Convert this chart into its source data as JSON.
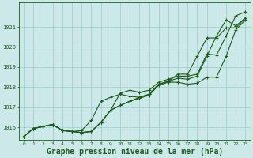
{
  "background_color": "#cce8e8",
  "grid_color": "#99cccc",
  "line_color": "#1a5c1a",
  "xlabel": "Graphe pression niveau de la mer (hPa)",
  "xlabel_fontsize": 7,
  "ylim": [
    1015.4,
    1022.2
  ],
  "yticks": [
    1016,
    1017,
    1018,
    1019,
    1020,
    1021
  ],
  "xticks": [
    0,
    1,
    2,
    3,
    4,
    5,
    6,
    7,
    8,
    9,
    10,
    11,
    12,
    13,
    14,
    15,
    16,
    17,
    18,
    19,
    20,
    21,
    22,
    23
  ],
  "x": [
    0,
    1,
    2,
    3,
    4,
    5,
    6,
    7,
    8,
    9,
    10,
    11,
    12,
    13,
    14,
    15,
    16,
    17,
    18,
    19,
    20,
    21,
    22,
    23
  ],
  "series1": [
    1015.55,
    1015.95,
    1016.05,
    1016.15,
    1015.85,
    1015.8,
    1015.75,
    1015.8,
    1016.25,
    1016.85,
    1017.1,
    1017.3,
    1017.45,
    1017.6,
    1018.1,
    1018.25,
    1018.25,
    1018.15,
    1018.2,
    1018.5,
    1018.5,
    1019.55,
    1020.85,
    1021.35
  ],
  "series2": [
    1015.55,
    1015.95,
    1016.05,
    1016.15,
    1015.85,
    1015.8,
    1015.75,
    1015.8,
    1016.25,
    1016.85,
    1017.1,
    1017.3,
    1017.5,
    1017.65,
    1018.15,
    1018.3,
    1018.45,
    1018.4,
    1018.55,
    1019.55,
    1020.55,
    1021.35,
    1021.05,
    1021.45
  ],
  "series3": [
    1015.55,
    1015.95,
    1016.05,
    1016.15,
    1015.85,
    1015.8,
    1015.85,
    1016.35,
    1017.3,
    1017.5,
    1017.65,
    1017.55,
    1017.5,
    1017.65,
    1018.15,
    1018.3,
    1018.65,
    1018.65,
    1019.55,
    1020.45,
    1020.45,
    1020.95,
    1020.95,
    1021.45
  ],
  "series4": [
    1015.55,
    1015.95,
    1016.05,
    1016.15,
    1015.85,
    1015.8,
    1015.75,
    1015.8,
    1016.25,
    1016.85,
    1017.7,
    1017.85,
    1017.75,
    1017.85,
    1018.25,
    1018.4,
    1018.55,
    1018.55,
    1018.65,
    1019.65,
    1019.6,
    1020.55,
    1021.55,
    1021.75
  ]
}
